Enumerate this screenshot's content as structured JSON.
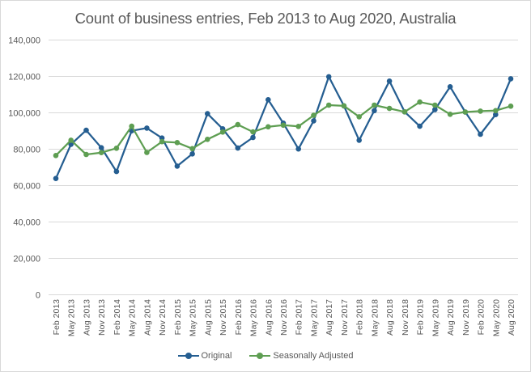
{
  "chart_data": {
    "type": "line",
    "title": "Count of business entries, Feb 2013 to Aug 2020, Australia",
    "xlabel": "",
    "ylabel": "",
    "ylim": [
      0,
      140000
    ],
    "yticks": [
      0,
      20000,
      40000,
      60000,
      80000,
      100000,
      120000,
      140000
    ],
    "ytick_labels": [
      "0",
      "20,000",
      "40,000",
      "60,000",
      "80,000",
      "100,000",
      "120,000",
      "140,000"
    ],
    "grid": true,
    "legend_position": "bottom",
    "categories": [
      "Feb 2013",
      "May 2013",
      "Aug 2013",
      "Nov 2013",
      "Feb 2014",
      "May 2014",
      "Aug 2014",
      "Nov 2014",
      "Feb 2015",
      "May 2015",
      "Aug 2015",
      "Nov 2015",
      "Feb 2016",
      "May 2016",
      "Aug 2016",
      "Nov 2016",
      "Feb 2017",
      "May 2017",
      "Aug 2017",
      "Nov 2017",
      "Feb 2018",
      "May 2018",
      "Aug 2018",
      "Nov 2018",
      "Feb 2019",
      "May 2019",
      "Aug 2019",
      "Nov 2019",
      "Feb 2020",
      "May 2020",
      "Aug 2020"
    ],
    "series": [
      {
        "name": "Original",
        "color": "#255E91",
        "values": [
          63700,
          82500,
          90200,
          80600,
          67500,
          89900,
          91400,
          85900,
          70500,
          77200,
          99300,
          91000,
          80400,
          86200,
          107000,
          94100,
          79900,
          95400,
          119600,
          103600,
          84700,
          101000,
          117200,
          100300,
          92400,
          101500,
          114100,
          100200,
          88000,
          98800,
          118500
        ]
      },
      {
        "name": "Seasonally Adjusted",
        "color": "#5E9E52",
        "values": [
          76300,
          84700,
          76900,
          77900,
          80300,
          92400,
          78000,
          83900,
          83400,
          80100,
          85200,
          89200,
          93300,
          89300,
          92100,
          93000,
          92300,
          98400,
          104000,
          103600,
          97600,
          104000,
          102200,
          100300,
          105700,
          104000,
          99000,
          100200,
          100700,
          101000,
          103400
        ]
      }
    ]
  },
  "legend": {
    "items": [
      {
        "label": "Original",
        "color": "#255E91"
      },
      {
        "label": "Seasonally Adjusted",
        "color": "#5E9E52"
      }
    ]
  }
}
